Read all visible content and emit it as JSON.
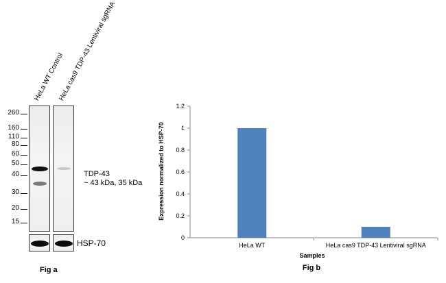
{
  "fig_a": {
    "lanes": [
      "HeLa WT Control",
      "HeLa cas9 TDP-43 Lentiviral sgRNA"
    ],
    "mw_markers": [
      "260",
      "160",
      "110",
      "80",
      "60",
      "50",
      "40",
      "30",
      "20",
      "15"
    ],
    "target_label": "TDP-43",
    "target_size": "~ 43 kDa, 35 kDa",
    "loading_control": "HSP-70",
    "caption": "Fig a",
    "band_intensity_relative": [
      1.0,
      0.1
    ]
  },
  "fig_b": {
    "caption": "Fig b"
  },
  "chart_data": {
    "type": "bar",
    "categories": [
      "HeLa WT",
      "HeLa cas9 TDP-43 Lentiviral sgRNA"
    ],
    "values": [
      1.0,
      0.1
    ],
    "title": "",
    "xlabel": "Samples",
    "ylabel": "Expression  normalized to HSP-70",
    "ylim": [
      0,
      1.2
    ],
    "yticks": [
      "0",
      "0.2",
      "0.4",
      "0.6",
      "0.8",
      "1",
      "1.2"
    ],
    "bar_color": "#4f81bd",
    "grid": false,
    "legend": "none"
  }
}
